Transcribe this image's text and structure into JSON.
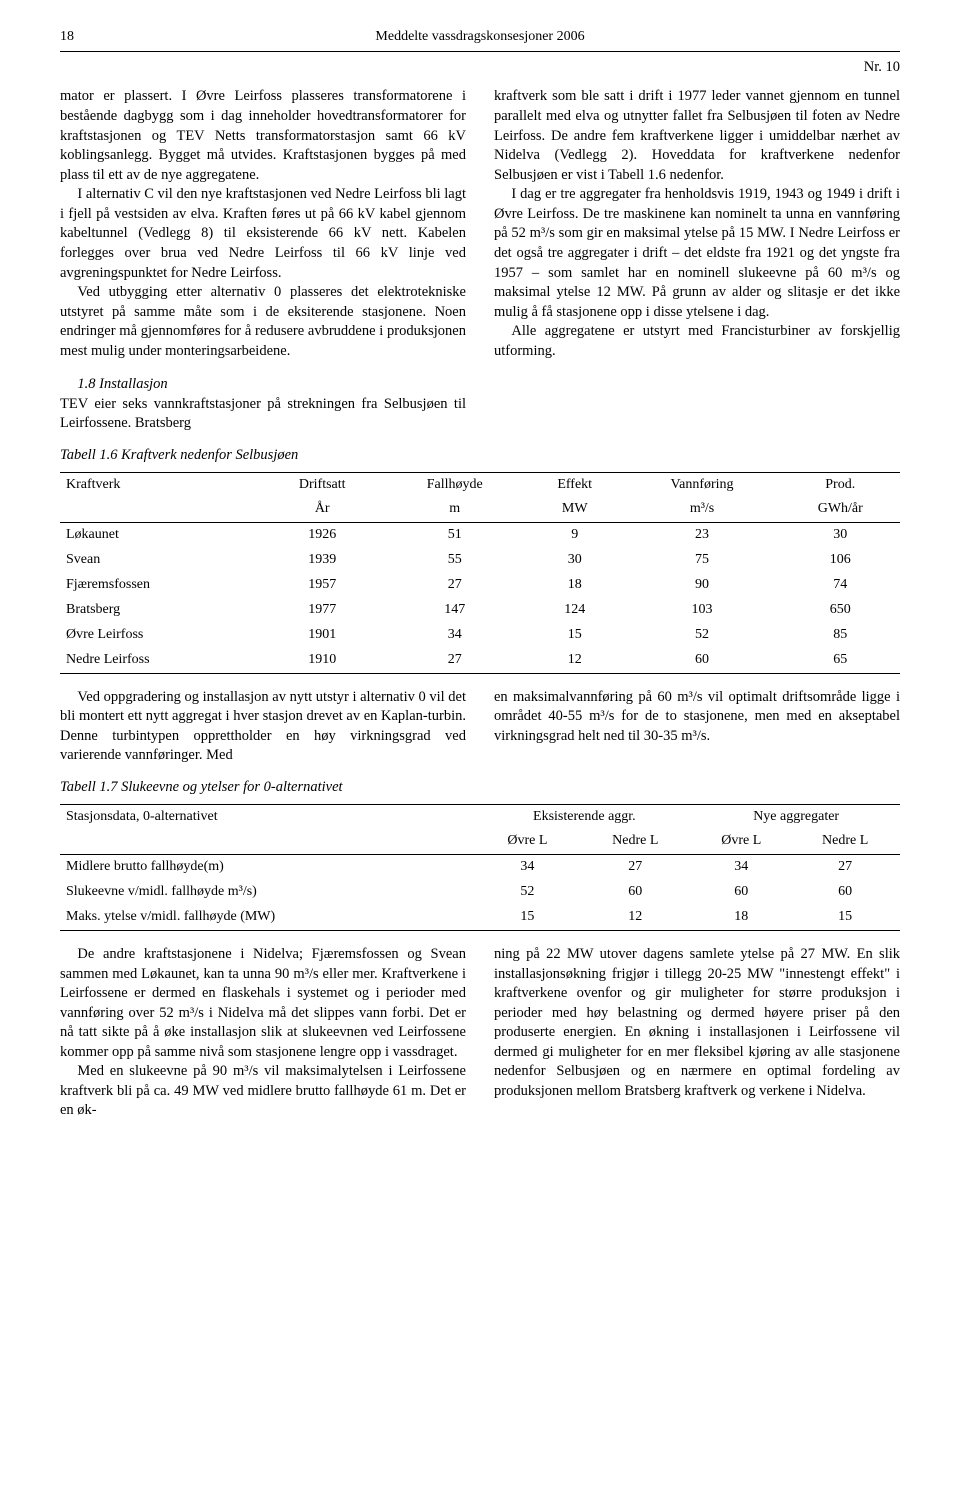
{
  "header": {
    "page_number": "18",
    "doc_title": "Meddelte vassdragskonsesjoner 2006",
    "nr": "Nr. 10"
  },
  "left_col": {
    "p1": "mator er plassert. I Øvre Leirfoss plasseres transformatorene i bestående dagbygg som i dag inneholder hovedtransformatorer for kraftstasjonen og TEV Netts transformatorstasjon samt 66 kV koblingsanlegg. Bygget må utvides. Kraftstasjonen bygges på med plass til ett av de nye aggregatene.",
    "p2": "I alternativ C vil den nye kraftstasjonen ved Nedre Leirfoss bli lagt i fjell på vestsiden av elva. Kraften føres ut på 66 kV kabel gjennom kabeltunnel (Vedlegg 8) til eksisterende 66 kV nett. Kabelen forlegges over brua ved Nedre Leirfoss til 66 kV linje ved avgreningspunktet for Nedre Leirfoss.",
    "p3": "Ved utbygging etter alternativ 0 plasseres det elektrotekniske utstyret på samme måte som i de eksiterende stasjonene. Noen endringer må gjennomføres for å redusere avbruddene i produksjonen mest mulig under monteringsarbeidene.",
    "section_head": "1.8   Installasjon",
    "p4": "TEV eier seks vannkraftstasjoner på strekningen fra Selbusjøen til Leirfossene. Bratsberg"
  },
  "right_col": {
    "p1": "kraftverk som ble satt i drift i 1977 leder vannet gjennom en tunnel parallelt med elva og utnytter fallet fra Selbusjøen til foten av Nedre Leirfoss. De andre fem kraftverkene ligger i umiddelbar nærhet av Nidelva (Vedlegg 2). Hoveddata for kraftverkene nedenfor Selbusjøen er vist i Tabell 1.6 nedenfor.",
    "p2": "I dag er tre aggregater fra henholdsvis 1919, 1943 og 1949 i drift i Øvre Leirfoss. De tre maskinene kan nominelt ta unna en vannføring på 52 m³/s som gir en maksimal ytelse på 15 MW. I Nedre Leirfoss er det også tre aggregater i drift – det eldste fra 1921 og det yngste fra 1957 – som samlet har en nominell slukeevne på 60 m³/s og maksimal ytelse 12 MW. På grunn av alder og slitasje er det ikke mulig å få stasjonene opp i disse ytelsene i dag.",
    "p3": "Alle aggregatene er utstyrt med Francisturbiner av forskjellig utforming."
  },
  "table16": {
    "caption": "Tabell 1.6  Kraftverk nedenfor Selbusjøen",
    "headers": {
      "c1": "Kraftverk",
      "c2a": "Driftsatt",
      "c2b": "År",
      "c3a": "Fallhøyde",
      "c3b": "m",
      "c4a": "Effekt",
      "c4b": "MW",
      "c5a": "Vannføring",
      "c5b": "m³/s",
      "c6a": "Prod.",
      "c6b": "GWh/år"
    },
    "rows": [
      {
        "name": "Løkaunet",
        "year": "1926",
        "fall": "51",
        "mw": "9",
        "flow": "23",
        "prod": "30"
      },
      {
        "name": "Svean",
        "year": "1939",
        "fall": "55",
        "mw": "30",
        "flow": "75",
        "prod": "106"
      },
      {
        "name": "Fjæremsfossen",
        "year": "1957",
        "fall": "27",
        "mw": "18",
        "flow": "90",
        "prod": "74"
      },
      {
        "name": "Bratsberg",
        "year": "1977",
        "fall": "147",
        "mw": "124",
        "flow": "103",
        "prod": "650"
      },
      {
        "name": "Øvre Leirfoss",
        "year": "1901",
        "fall": "34",
        "mw": "15",
        "flow": "52",
        "prod": "85"
      },
      {
        "name": "Nedre Leirfoss",
        "year": "1910",
        "fall": "27",
        "mw": "12",
        "flow": "60",
        "prod": "65"
      }
    ]
  },
  "mid_left": {
    "p1": "Ved oppgradering og installasjon av nytt utstyr i alternativ 0 vil det bli montert ett nytt aggregat i hver stasjon drevet av en Kaplan-turbin. Denne turbintypen opprettholder en høy virkningsgrad ved varierende vannføringer. Med"
  },
  "mid_right": {
    "p1": "en maksimalvannføring på 60 m³/s vil optimalt driftsområde ligge i området 40-55 m³/s for de to stasjonene, men med en akseptabel virkningsgrad helt ned til 30-35 m³/s."
  },
  "table17": {
    "caption": "Tabell 1.7  Slukeevne og ytelser for 0-alternativet",
    "headers": {
      "c1": "Stasjonsdata, 0-alternativet",
      "g1": "Eksisterende aggr.",
      "g2": "Nye aggregater",
      "s1": "Øvre L",
      "s2": "Nedre L",
      "s3": "Øvre L",
      "s4": "Nedre L"
    },
    "rows": [
      {
        "label": "Midlere brutto fallhøyde(m)",
        "a": "34",
        "b": "27",
        "c": "34",
        "d": "27"
      },
      {
        "label": "Slukeevne v/midl. fallhøyde m³/s)",
        "a": "52",
        "b": "60",
        "c": "60",
        "d": "60"
      },
      {
        "label": "Maks. ytelse v/midl. fallhøyde (MW)",
        "a": "15",
        "b": "12",
        "c": "18",
        "d": "15"
      }
    ]
  },
  "bot_left": {
    "p1": "De andre kraftstasjonene i Nidelva; Fjæremsfossen og Svean sammen med Løkaunet, kan ta unna 90 m³/s eller mer. Kraftverkene i Leirfossene er dermed en flaskehals i systemet og i perioder med vannføring over 52 m³/s i Nidelva må det slippes vann forbi. Det er nå tatt sikte på å øke installasjon slik at slukeevnen ved Leirfossene kommer opp på samme nivå som stasjonene lengre opp i vassdraget.",
    "p2": "Med en slukeevne på 90 m³/s vil maksimalytelsen i Leirfossene kraftverk bli på ca. 49 MW ved midlere brutto fallhøyde 61 m. Det er en øk-"
  },
  "bot_right": {
    "p1": "ning på 22 MW utover dagens samlete ytelse på 27 MW. En slik installasjonsøkning frigjør i tillegg 20-25 MW \"innestengt effekt\" i kraftverkene ovenfor og gir muligheter for større produksjon i perioder med høy belastning og dermed høyere priser på den produserte energien. En økning i installasjonen i Leirfossene vil dermed gi muligheter for en mer fleksibel kjøring av alle stasjonene nedenfor Selbusjøen og en nærmere en optimal fordeling av produksjonen mellom Bratsberg kraftverk og verkene i Nidelva."
  }
}
